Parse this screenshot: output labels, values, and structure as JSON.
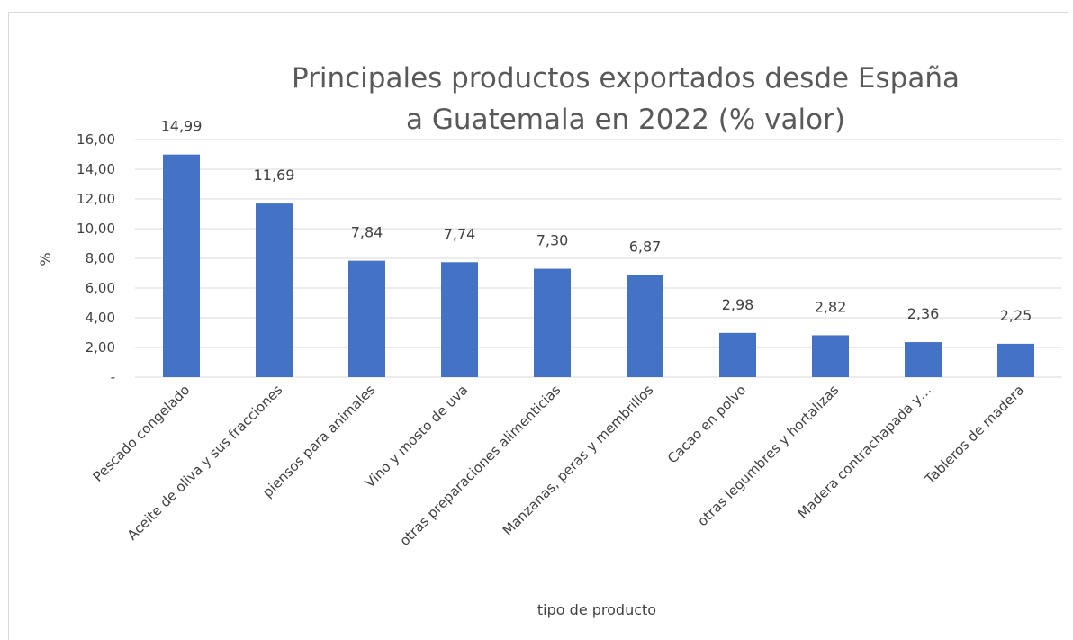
{
  "chart_data": {
    "type": "bar",
    "title_lines": [
      "Principales productos exportados desde España",
      "a Guatemala en 2022 (% valor)"
    ],
    "xlabel": "tipo de producto",
    "ylabel": "%",
    "ylim": [
      0,
      16
    ],
    "yticks": [
      0,
      2,
      4,
      6,
      8,
      10,
      12,
      14,
      16
    ],
    "ytick_labels": [
      "-",
      "2,00",
      "4,00",
      "6,00",
      "8,00",
      "10,00",
      "12,00",
      "14,00",
      "16,00"
    ],
    "grid": true,
    "legend": "none",
    "categories": [
      "Pescado congelado",
      "Aceite de oliva y sus fracciones",
      "piensos para animales",
      "Vino y mosto de uva",
      "otras preparaciones alimenticias",
      "Manzanas, peras y membrillos",
      "Cacao en polvo",
      "otras legumbres y hortalizas",
      "Madera contrachapada y…",
      "Tableros de madera"
    ],
    "values": [
      14.99,
      11.69,
      7.84,
      7.74,
      7.3,
      6.87,
      2.98,
      2.82,
      2.36,
      2.25
    ],
    "value_labels": [
      "14,99",
      "11,69",
      "7,84",
      "7,74",
      "7,30",
      "6,87",
      "2,98",
      "2,82",
      "2,36",
      "2,25"
    ],
    "colors": {
      "bar": "#4472c4",
      "grid": "#d9d9d9",
      "text": "#404040",
      "title": "#595959"
    }
  }
}
